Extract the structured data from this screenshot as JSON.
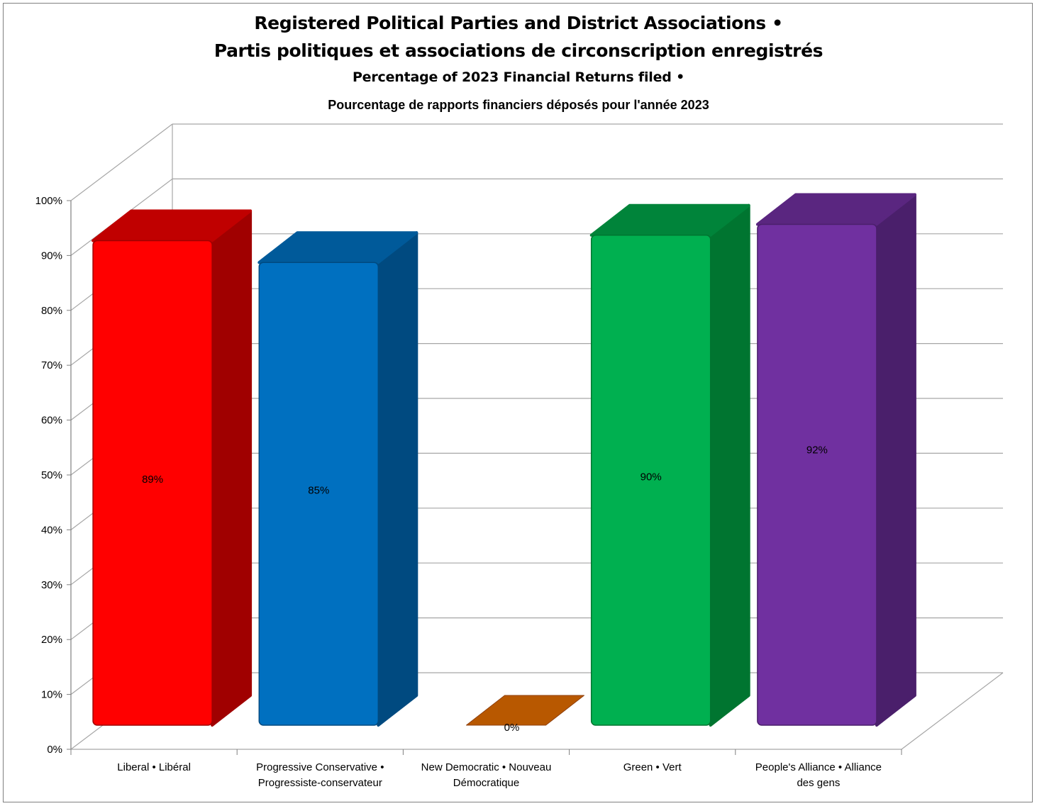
{
  "chart_data": {
    "type": "bar",
    "title": "Registered Political Parties and District Associations •",
    "title_line2": "Partis politiques et associations de circonscription enregistrés",
    "subtitle": "Percentage of 2023 Financial Returns filed •",
    "subtitle_line2": "Pourcentage de rapports financiers déposés pour l'année 2023",
    "categories": [
      [
        "Liberal • Libéral"
      ],
      [
        "Progressive Conservative •",
        "Progressiste-conservateur"
      ],
      [
        "New Democratic • Nouveau",
        "Démocratique"
      ],
      [
        "Green • Vert"
      ],
      [
        "People's Alliance • Alliance",
        "des gens"
      ]
    ],
    "values": [
      89,
      85,
      0,
      90,
      92
    ],
    "data_labels": [
      "89%",
      "85%",
      "0%",
      "90%",
      "92%"
    ],
    "colors": [
      {
        "front": "#ff0000",
        "side": "#a00000",
        "top": "#c00000"
      },
      {
        "front": "#0070c0",
        "side": "#004a80",
        "top": "#005a9a"
      },
      {
        "front": "#c55a11",
        "side": "#8f400c",
        "top": "#b85800"
      },
      {
        "front": "#00b050",
        "side": "#007530",
        "top": "#00843a"
      },
      {
        "front": "#7030a0",
        "side": "#4a1f6b",
        "top": "#5a2680"
      }
    ],
    "y_ticks": [
      "0%",
      "10%",
      "20%",
      "30%",
      "40%",
      "50%",
      "60%",
      "70%",
      "80%",
      "90%",
      "100%"
    ],
    "ylim": [
      0,
      100
    ],
    "style": "3d",
    "grid": true,
    "legend": "none"
  }
}
